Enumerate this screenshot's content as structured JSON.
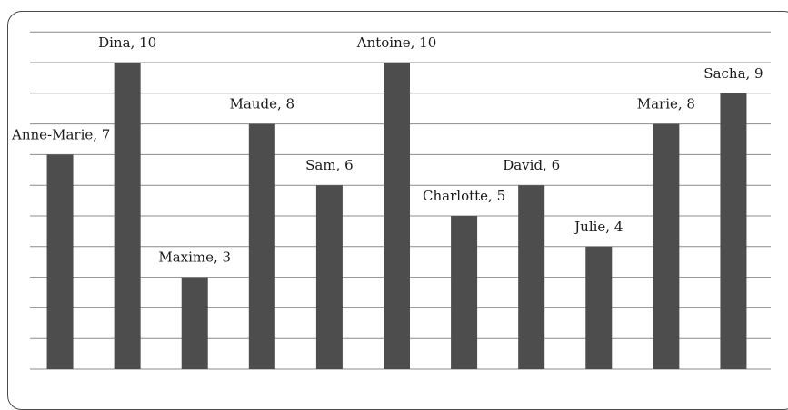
{
  "chart_data": {
    "type": "bar",
    "categories": [
      "Anne-Marie",
      "Dina",
      "Maxime",
      "Maude",
      "Sam",
      "Antoine",
      "Charlotte",
      "David",
      "Julie",
      "Marie",
      "Sacha"
    ],
    "values": [
      7,
      10,
      3,
      8,
      6,
      10,
      5,
      6,
      4,
      8,
      9
    ],
    "data_labels": [
      "Anne-Marie, 7",
      "Dina, 10",
      "Maxime, 3",
      "Maude, 8",
      "Sam, 6",
      "Antoine, 10",
      "Charlotte, 5",
      "David, 6",
      "Julie, 4",
      "Marie, 8",
      "Sacha, 9"
    ],
    "title": "",
    "xlabel": "",
    "ylabel": "",
    "ylim": [
      0,
      11
    ],
    "grid": true,
    "legend": "none",
    "colors": {
      "bar": "#4d4d4d",
      "grid": "#8c8c8c",
      "frame": "#4a4a4a"
    }
  }
}
